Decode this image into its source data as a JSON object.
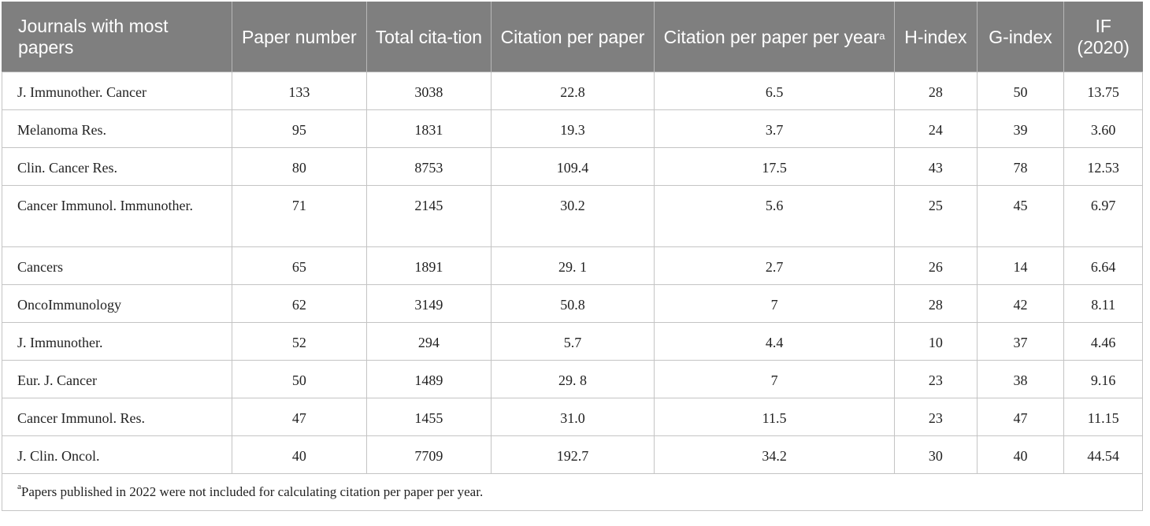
{
  "table": {
    "headers": [
      {
        "text": "Journals with most papers",
        "sup": ""
      },
      {
        "text": "Paper number",
        "sup": ""
      },
      {
        "text": "Total cita-tion",
        "sup": ""
      },
      {
        "text": "Citation per paper",
        "sup": ""
      },
      {
        "text": "Citation per paper per year",
        "sup": "a"
      },
      {
        "text": "H-index",
        "sup": ""
      },
      {
        "text": "G-index",
        "sup": ""
      },
      {
        "text": "IF (2020)",
        "sup": ""
      }
    ],
    "rows": [
      [
        "J. Immunother. Cancer",
        "133",
        "3038",
        "22.8",
        "6.5",
        "28",
        "50",
        "13.75"
      ],
      [
        "Melanoma Res.",
        "95",
        "1831",
        "19.3",
        "3.7",
        "24",
        "39",
        "3.60"
      ],
      [
        "Clin. Cancer Res.",
        "80",
        "8753",
        "109.4",
        "17.5",
        "43",
        "78",
        "12.53"
      ],
      [
        "Cancer Immunol. Immunother.",
        "71",
        "2145",
        "30.2",
        "5.6",
        "25",
        "45",
        "6.97"
      ],
      [
        "Cancers",
        "65",
        "1891",
        "29. 1",
        "2.7",
        "26",
        "14",
        "6.64"
      ],
      [
        "OncoImmunology",
        "62",
        "3149",
        "50.8",
        "7",
        "28",
        "42",
        "8.11"
      ],
      [
        "J. Immunother.",
        "52",
        "294",
        "5.7",
        "4.4",
        "10",
        "37",
        "4.46"
      ],
      [
        "Eur. J. Cancer",
        "50",
        "1489",
        "29. 8",
        "7",
        "23",
        "38",
        "9.16"
      ],
      [
        "Cancer Immunol. Res.",
        "47",
        "1455",
        "31.0",
        "11.5",
        "23",
        "47",
        "11.15"
      ],
      [
        "J. Clin. Oncol.",
        "40",
        "7709",
        "192.7",
        "34.2",
        "30",
        "40",
        "44.54"
      ]
    ],
    "footnote": {
      "mark": "a",
      "text": "Papers published in 2022 were not included for calculating citation per paper per year."
    }
  },
  "colors": {
    "header_bg": "#7f7f7f",
    "header_text": "#ffffff",
    "grid": "#c4c4c4"
  }
}
